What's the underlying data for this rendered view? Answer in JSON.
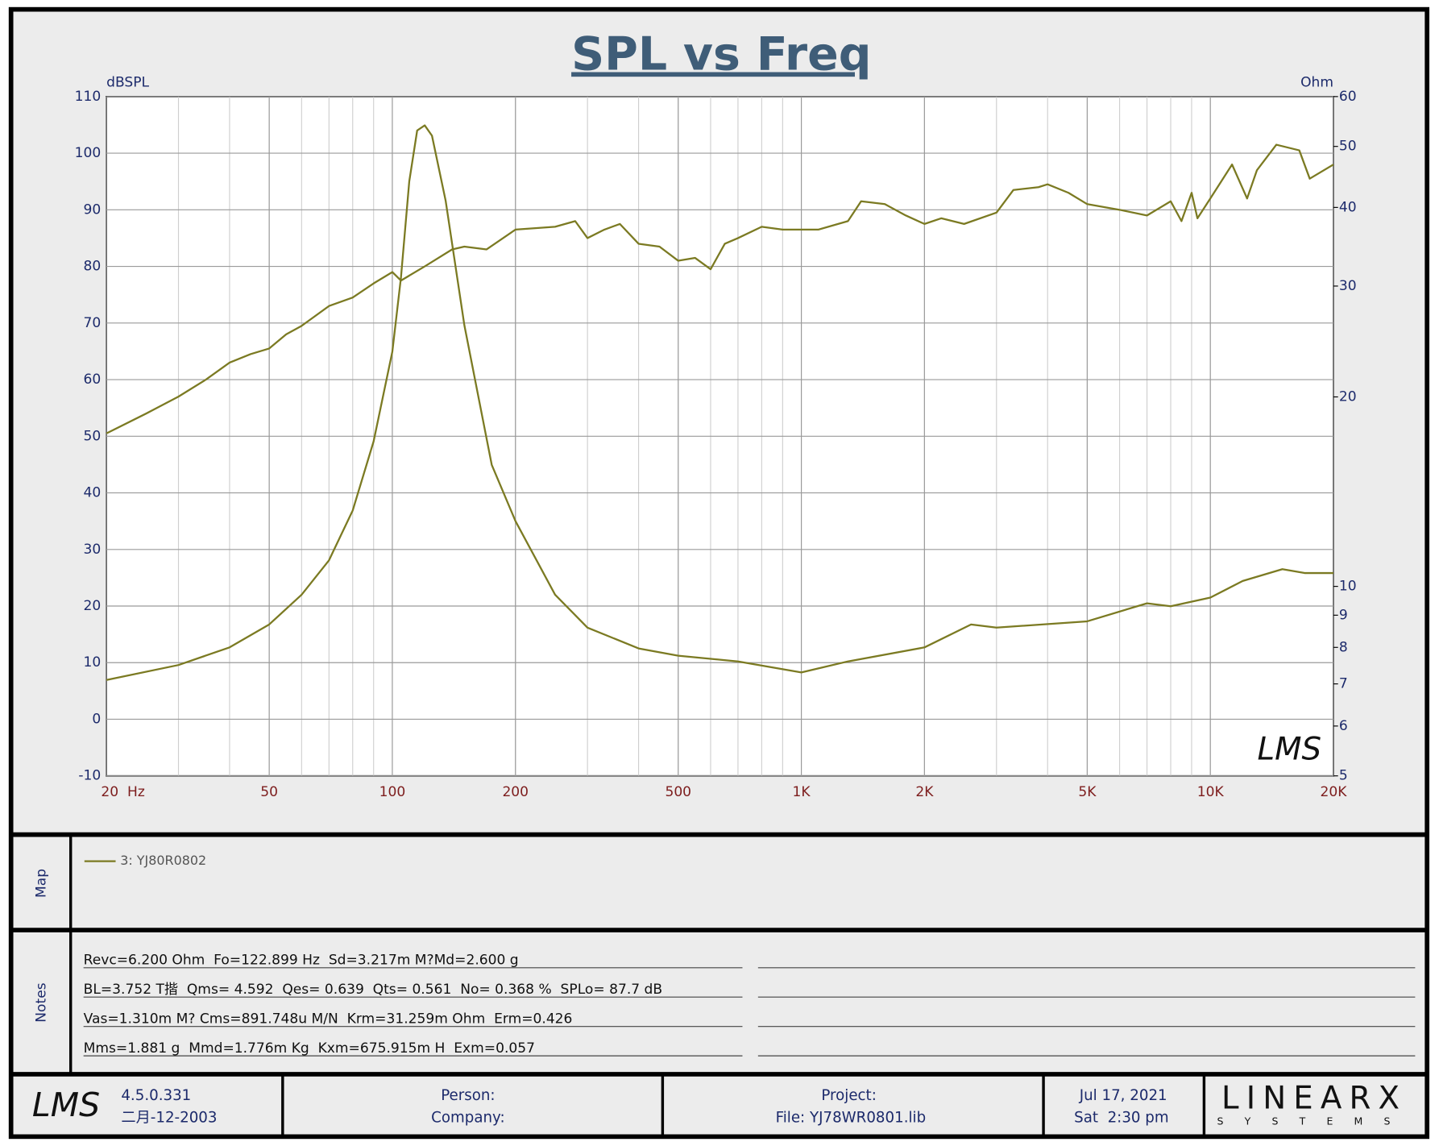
{
  "chart_data": {
    "type": "line",
    "title": "SPL vs Freq",
    "y_label": "dBSPL",
    "y2_label": "Ohm",
    "watermark": "LMS",
    "xscale": "log",
    "y2scale": "log",
    "grid": true,
    "xlim": [
      20,
      20000
    ],
    "xticks": [
      {
        "value": 20,
        "label": "20  Hz"
      },
      50,
      100,
      200,
      500,
      {
        "value": 1000,
        "label": "1K"
      },
      {
        "value": 2000,
        "label": "2K"
      },
      {
        "value": 5000,
        "label": "5K"
      },
      {
        "value": 10000,
        "label": "10K"
      },
      {
        "value": 20000,
        "label": "20K"
      }
    ],
    "ylim": [
      -10,
      110
    ],
    "yticks": [
      -10,
      0,
      10,
      20,
      30,
      40,
      50,
      60,
      70,
      80,
      90,
      100,
      110
    ],
    "y2lim": [
      5,
      60
    ],
    "y2ticks": [
      5,
      6,
      7,
      8,
      9,
      10,
      20,
      30,
      40,
      50,
      60
    ],
    "series": [
      {
        "name": "3: YJ80R0802",
        "color": "#7b7a22",
        "x": [
          20,
          25,
          30,
          35,
          40,
          45,
          50,
          55,
          60,
          70,
          80,
          90,
          100,
          105,
          120,
          140,
          150,
          170,
          200,
          250,
          280,
          300,
          330,
          360,
          400,
          450,
          500,
          550,
          600,
          650,
          700,
          800,
          900,
          1000,
          1100,
          1300,
          1400,
          1600,
          1800,
          2000,
          2200,
          2500,
          3000,
          3300,
          3800,
          4000,
          4500,
          5000,
          6000,
          7000,
          8000,
          8500,
          9000,
          9300,
          10000,
          11300,
          12300,
          13000,
          14500,
          16500,
          17500,
          20000
        ],
        "values": [
          50.5,
          54,
          57,
          60,
          63,
          64.5,
          65.5,
          68,
          69.5,
          73,
          74.5,
          77,
          79,
          77.5,
          80,
          83,
          83.5,
          83,
          86.5,
          87,
          88,
          85,
          86.5,
          87.5,
          84,
          83.5,
          81,
          81.5,
          79.5,
          84,
          85,
          87,
          86.5,
          86.5,
          86.5,
          88,
          91.5,
          91,
          89,
          87.5,
          88.5,
          87.5,
          89.5,
          93.5,
          94,
          94.5,
          93,
          91,
          90,
          89,
          91.5,
          88,
          93,
          88.5,
          92,
          98,
          92,
          97,
          101.5,
          100.5,
          95.5,
          98
        ]
      },
      {
        "color": "#7b7a22",
        "axis": "y2",
        "x": [
          20,
          30,
          40,
          50,
          60,
          70,
          80,
          90,
          100,
          105,
          110,
          115,
          120,
          125,
          135,
          150,
          175,
          200,
          250,
          300,
          400,
          500,
          700,
          1000,
          1300,
          2000,
          2600,
          3000,
          5000,
          7000,
          8000,
          10000,
          12000,
          15000,
          17000,
          20000
        ],
        "values": [
          7.1,
          7.5,
          8.0,
          8.7,
          9.7,
          11.0,
          13.2,
          17,
          23.6,
          31,
          44,
          53,
          54,
          52,
          41,
          26,
          15.6,
          12.7,
          9.7,
          8.6,
          7.97,
          7.76,
          7.6,
          7.3,
          7.6,
          8.0,
          8.7,
          8.6,
          8.8,
          9.4,
          9.3,
          9.6,
          10.2,
          10.65,
          10.5,
          10.5
        ]
      }
    ]
  },
  "map": {
    "label": "Map"
  },
  "notes": {
    "label": "Notes",
    "lines": [
      "Revc=6.200 Ohm  Fo=122.899 Hz  Sd=3.217m M?Md=2.600 g",
      "BL=3.752 T揩  Qms= 4.592  Qes= 0.639  Qts= 0.561  No= 0.368 %  SPLo= 87.7 dB",
      "Vas=1.310m M? Cms=891.748u M/N  Krm=31.259m Ohm  Erm=0.426",
      "Mms=1.881 g  Mmd=1.776m Kg  Kxm=675.915m H  Exm=0.057"
    ]
  },
  "footer": {
    "logo": "LMS",
    "version": "4.5.0.331",
    "build_date": "二月-12-2003",
    "person": "Person:",
    "company": "Company:",
    "project": "Project:",
    "file": "File: YJ78WR0801.lib",
    "date": "Jul 17, 2021",
    "time": "Sat  2:30 pm",
    "brand": "LINEARX",
    "brand_sub": "SYSTEMS"
  }
}
